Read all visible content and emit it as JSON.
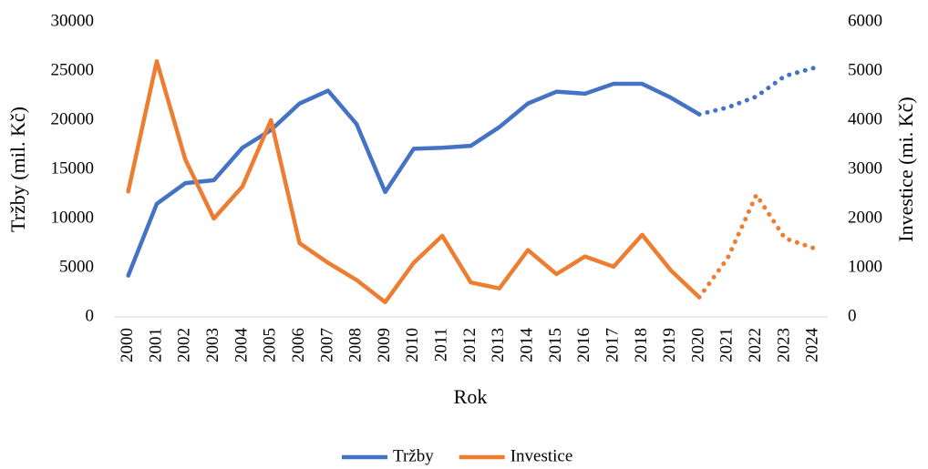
{
  "chart_data": {
    "type": "line",
    "x_label": "Rok",
    "y_label": "Tržby (mil. Kč)",
    "y2_label": "Investice (mi. Kč)",
    "categories": [
      "2000",
      "2001",
      "2002",
      "2003",
      "2004",
      "2005",
      "2006",
      "2007",
      "2008",
      "2009",
      "2010",
      "2011",
      "2012",
      "2013",
      "2014",
      "2015",
      "2016",
      "2017",
      "2018",
      "2019",
      "2020",
      "2021",
      "2022",
      "2023",
      "2024"
    ],
    "dotted_from": "2020",
    "series": [
      {
        "name": "Tržby",
        "color": "#4472c4",
        "axis": "y",
        "values": [
          4200,
          11500,
          13600,
          13900,
          17200,
          19000,
          21700,
          23000,
          19600,
          12700,
          17100,
          17200,
          17400,
          19300,
          21700,
          22900,
          22700,
          23700,
          23700,
          22300,
          20600,
          21300,
          22400,
          24500,
          25300
        ]
      },
      {
        "name": "Investice",
        "color": "#ed7d31",
        "axis": "y2",
        "values": [
          2550,
          5200,
          3200,
          2000,
          2650,
          4000,
          1500,
          1100,
          750,
          300,
          1100,
          1650,
          700,
          580,
          1360,
          870,
          1230,
          1020,
          1670,
          950,
          400,
          1200,
          2480,
          1600,
          1400
        ]
      }
    ],
    "ylim": [
      0,
      30000
    ],
    "yticks": [
      0,
      5000,
      10000,
      15000,
      20000,
      25000,
      30000
    ],
    "y2lim": [
      0,
      6000
    ],
    "y2ticks": [
      0,
      1000,
      2000,
      3000,
      4000,
      5000,
      6000
    ],
    "grid": false,
    "legend": "bottom"
  }
}
